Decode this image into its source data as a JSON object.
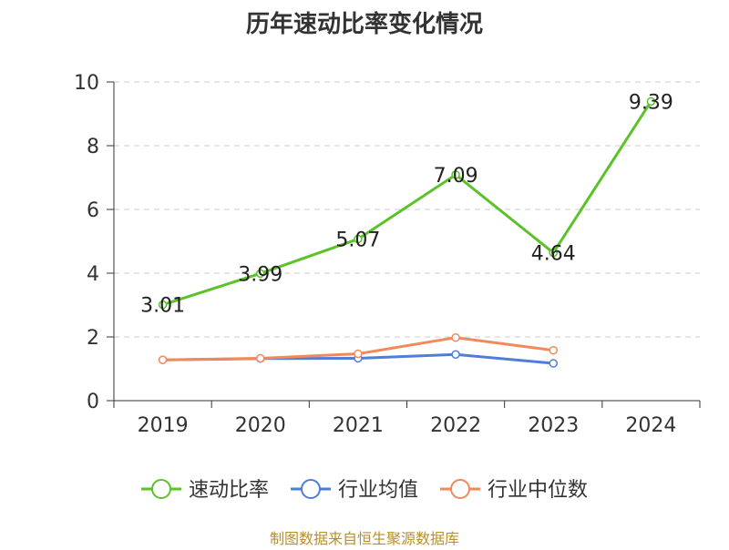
{
  "chart_data": {
    "type": "line",
    "title": "历年速动比率变化情况",
    "categories": [
      "2019",
      "2020",
      "2021",
      "2022",
      "2023",
      "2024"
    ],
    "y_ticks": [
      "0",
      "2",
      "4",
      "6",
      "8",
      "10"
    ],
    "ylim": [
      0,
      10
    ],
    "grid": true,
    "legend_position": "bottom-center",
    "series": [
      {
        "name": "速动比率",
        "color": "#5cc22a",
        "show_labels": true,
        "values": [
          3.01,
          3.99,
          5.07,
          7.09,
          4.64,
          9.39
        ],
        "labels": [
          "3.01",
          "3.99",
          "5.07",
          "7.09",
          "4.64",
          "9.39"
        ]
      },
      {
        "name": "行业均值",
        "color": "#4e7ed8",
        "show_labels": false,
        "values": [
          1.28,
          1.32,
          1.33,
          1.45,
          1.17,
          null
        ]
      },
      {
        "name": "行业中位数",
        "color": "#f2895a",
        "show_labels": false,
        "values": [
          1.28,
          1.33,
          1.47,
          1.98,
          1.58,
          null
        ]
      }
    ]
  },
  "source": "制图数据来自恒生聚源数据库"
}
